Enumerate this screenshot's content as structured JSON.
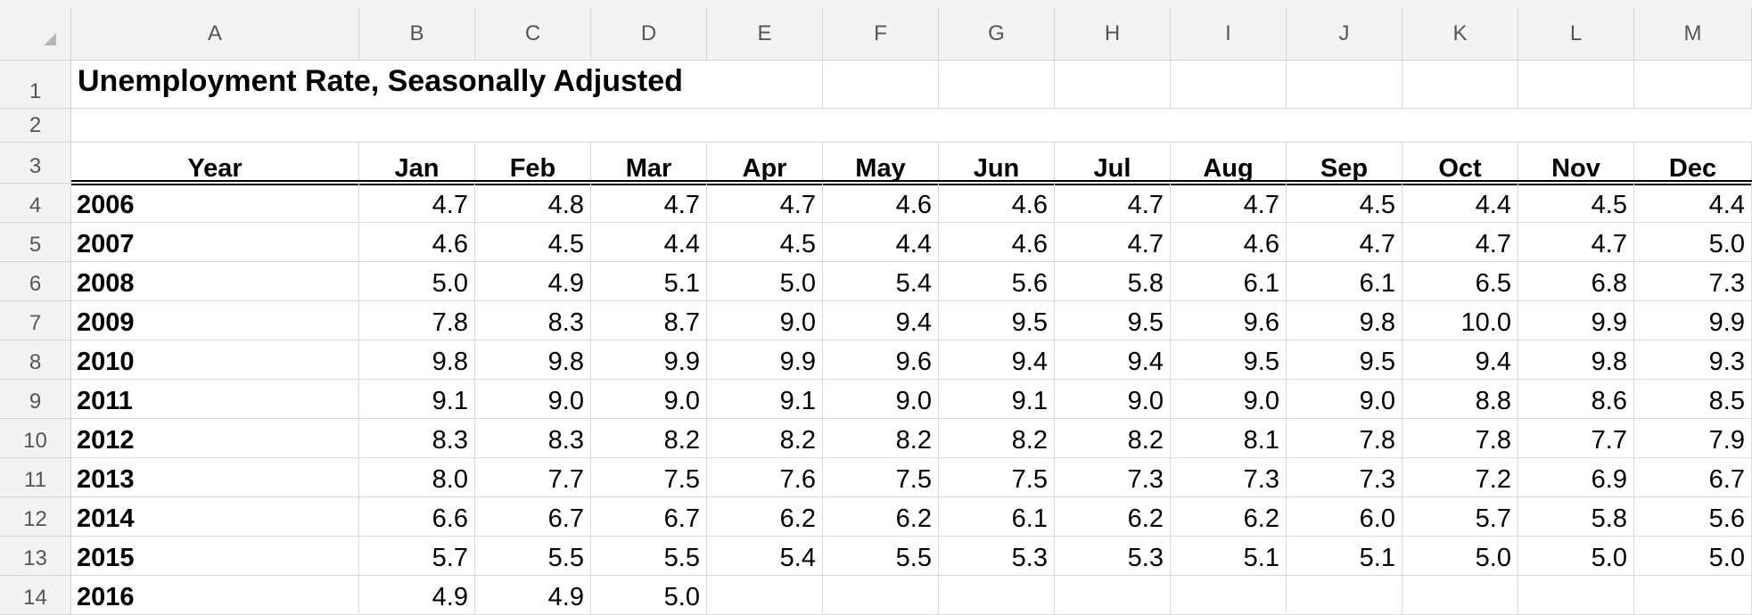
{
  "sheet": {
    "column_letters": [
      "A",
      "B",
      "C",
      "D",
      "E",
      "F",
      "G",
      "H",
      "I",
      "J",
      "K",
      "L",
      "M"
    ],
    "row_numbers": [
      "1",
      "2",
      "3",
      "4",
      "5",
      "6",
      "7",
      "8",
      "9",
      "10",
      "11",
      "12",
      "13",
      "14"
    ],
    "title": "Unemployment Rate, Seasonally Adjusted",
    "header_row": [
      "Year",
      "Jan",
      "Feb",
      "Mar",
      "Apr",
      "May",
      "Jun",
      "Jul",
      "Aug",
      "Sep",
      "Oct",
      "Nov",
      "Dec"
    ],
    "rows": [
      [
        "2006",
        "4.7",
        "4.8",
        "4.7",
        "4.7",
        "4.6",
        "4.6",
        "4.7",
        "4.7",
        "4.5",
        "4.4",
        "4.5",
        "4.4"
      ],
      [
        "2007",
        "4.6",
        "4.5",
        "4.4",
        "4.5",
        "4.4",
        "4.6",
        "4.7",
        "4.6",
        "4.7",
        "4.7",
        "4.7",
        "5.0"
      ],
      [
        "2008",
        "5.0",
        "4.9",
        "5.1",
        "5.0",
        "5.4",
        "5.6",
        "5.8",
        "6.1",
        "6.1",
        "6.5",
        "6.8",
        "7.3"
      ],
      [
        "2009",
        "7.8",
        "8.3",
        "8.7",
        "9.0",
        "9.4",
        "9.5",
        "9.5",
        "9.6",
        "9.8",
        "10.0",
        "9.9",
        "9.9"
      ],
      [
        "2010",
        "9.8",
        "9.8",
        "9.9",
        "9.9",
        "9.6",
        "9.4",
        "9.4",
        "9.5",
        "9.5",
        "9.4",
        "9.8",
        "9.3"
      ],
      [
        "2011",
        "9.1",
        "9.0",
        "9.0",
        "9.1",
        "9.0",
        "9.1",
        "9.0",
        "9.0",
        "9.0",
        "8.8",
        "8.6",
        "8.5"
      ],
      [
        "2012",
        "8.3",
        "8.3",
        "8.2",
        "8.2",
        "8.2",
        "8.2",
        "8.2",
        "8.1",
        "7.8",
        "7.8",
        "7.7",
        "7.9"
      ],
      [
        "2013",
        "8.0",
        "7.7",
        "7.5",
        "7.6",
        "7.5",
        "7.5",
        "7.3",
        "7.3",
        "7.3",
        "7.2",
        "6.9",
        "6.7"
      ],
      [
        "2014",
        "6.6",
        "6.7",
        "6.7",
        "6.2",
        "6.2",
        "6.1",
        "6.2",
        "6.2",
        "6.0",
        "5.7",
        "5.8",
        "5.6"
      ],
      [
        "2015",
        "5.7",
        "5.5",
        "5.5",
        "5.4",
        "5.5",
        "5.3",
        "5.3",
        "5.1",
        "5.1",
        "5.0",
        "5.0",
        "5.0"
      ],
      [
        "2016",
        "4.9",
        "4.9",
        "5.0",
        "",
        "",
        "",
        "",
        "",
        "",
        "",
        "",
        ""
      ]
    ]
  }
}
